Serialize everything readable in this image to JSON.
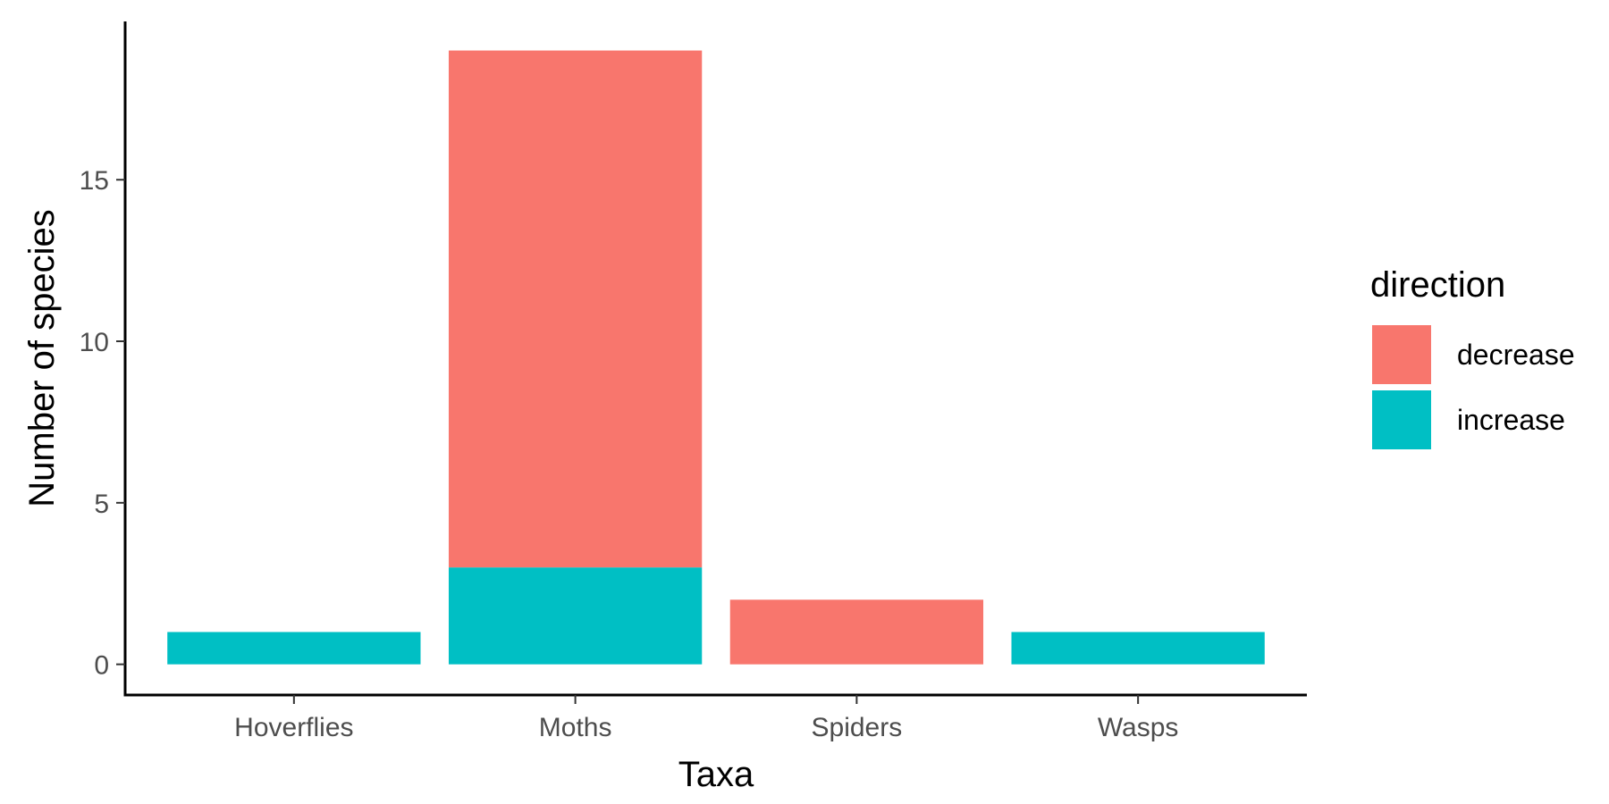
{
  "chart_data": {
    "type": "bar",
    "stacked": true,
    "title": "",
    "xlabel": "Taxa",
    "ylabel": "Number of species",
    "categories": [
      "Hoverflies",
      "Moths",
      "Spiders",
      "Wasps"
    ],
    "series": [
      {
        "name": "decrease",
        "color": "#F8766D",
        "values": [
          0,
          16,
          2,
          0
        ]
      },
      {
        "name": "increase",
        "color": "#00BFC4",
        "values": [
          1,
          3,
          0,
          1
        ]
      }
    ],
    "ylim": [
      -0.95,
      19.9
    ],
    "yticks": [
      0,
      5,
      10,
      15
    ],
    "grid": false,
    "legend": {
      "title": "direction",
      "position": "right"
    }
  }
}
